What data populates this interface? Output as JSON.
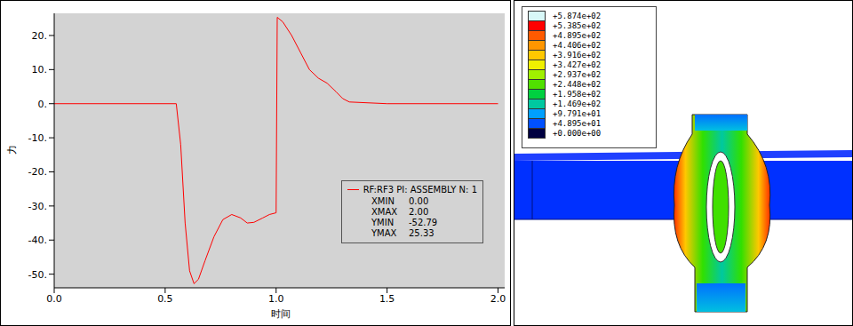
{
  "chart_data": {
    "type": "line",
    "x_label": "时间",
    "y_label": "力",
    "x": [
      0,
      0.55,
      0.57,
      0.59,
      0.61,
      0.63,
      0.65,
      0.68,
      0.72,
      0.76,
      0.8,
      0.84,
      0.87,
      0.9,
      0.94,
      0.97,
      1.0,
      1.005,
      1.03,
      1.07,
      1.11,
      1.15,
      1.19,
      1.23,
      1.27,
      1.3,
      1.33,
      1.5,
      2.0
    ],
    "series": [
      {
        "name": "RF:RF3 PI: ASSEMBLY N: 1",
        "color": "#ff0000",
        "values": [
          0,
          0,
          -12,
          -35,
          -49,
          -52.79,
          -51.5,
          -46,
          -39,
          -34,
          -32.5,
          -33.5,
          -35,
          -34.8,
          -33.5,
          -32.5,
          -32,
          25.33,
          24,
          20,
          15,
          10,
          7.5,
          6,
          3.5,
          1.5,
          0.5,
          0,
          0
        ]
      }
    ],
    "xlim": [
      0,
      2.03
    ],
    "xticks": [
      {
        "value": 0,
        "label": "0.0"
      },
      0.5,
      {
        "value": 1,
        "label": "1.0"
      },
      1.5,
      {
        "value": 2,
        "label": "2.0"
      }
    ],
    "ylim": [
      -54,
      26.5
    ],
    "yticks": [
      {
        "value": -50,
        "label": "-50."
      },
      {
        "value": -40,
        "label": "-40."
      },
      {
        "value": -30,
        "label": "-30."
      },
      {
        "value": -20,
        "label": "-20."
      },
      {
        "value": -10,
        "label": "-10."
      },
      {
        "value": 0,
        "label": "0."
      },
      {
        "value": 10,
        "label": "10."
      },
      {
        "value": 20,
        "label": "20."
      }
    ],
    "grid": false,
    "legend": "lower right",
    "legend_stats": [
      {
        "name": "XMIN",
        "label": "0.00"
      },
      {
        "name": "XMAX",
        "label": "2.00"
      },
      {
        "name": "YMIN",
        "label": "-52.79"
      },
      {
        "name": "YMAX",
        "label": "25.33"
      }
    ]
  },
  "contour_legend": {
    "ticks": [
      {
        "value": 587.4,
        "label": "+5.874e+02"
      },
      {
        "value": 538.5,
        "label": "+5.385e+02"
      },
      {
        "value": 489.5,
        "label": "+4.895e+02"
      },
      {
        "value": 440.6,
        "label": "+4.406e+02"
      },
      {
        "value": 391.6,
        "label": "+3.916e+02"
      },
      {
        "value": 342.7,
        "label": "+3.427e+02"
      },
      {
        "value": 293.7,
        "label": "+2.937e+02"
      },
      {
        "value": 244.8,
        "label": "+2.448e+02"
      },
      {
        "value": 195.8,
        "label": "+1.958e+02"
      },
      {
        "value": 146.9,
        "label": "+1.469e+02"
      },
      {
        "value": 97.91,
        "label": "+9.791e+01"
      },
      {
        "value": 48.95,
        "label": "+4.895e+01"
      },
      {
        "value": 0,
        "label": "+0.000e+00"
      }
    ],
    "colors": [
      "#d8f8f8",
      "#ff0000",
      "#ff5a00",
      "#ff9600",
      "#ffc800",
      "#f0f000",
      "#a0f000",
      "#50e000",
      "#00d040",
      "#00c8a0",
      "#00a0ff",
      "#0050ff",
      "#000040"
    ]
  }
}
